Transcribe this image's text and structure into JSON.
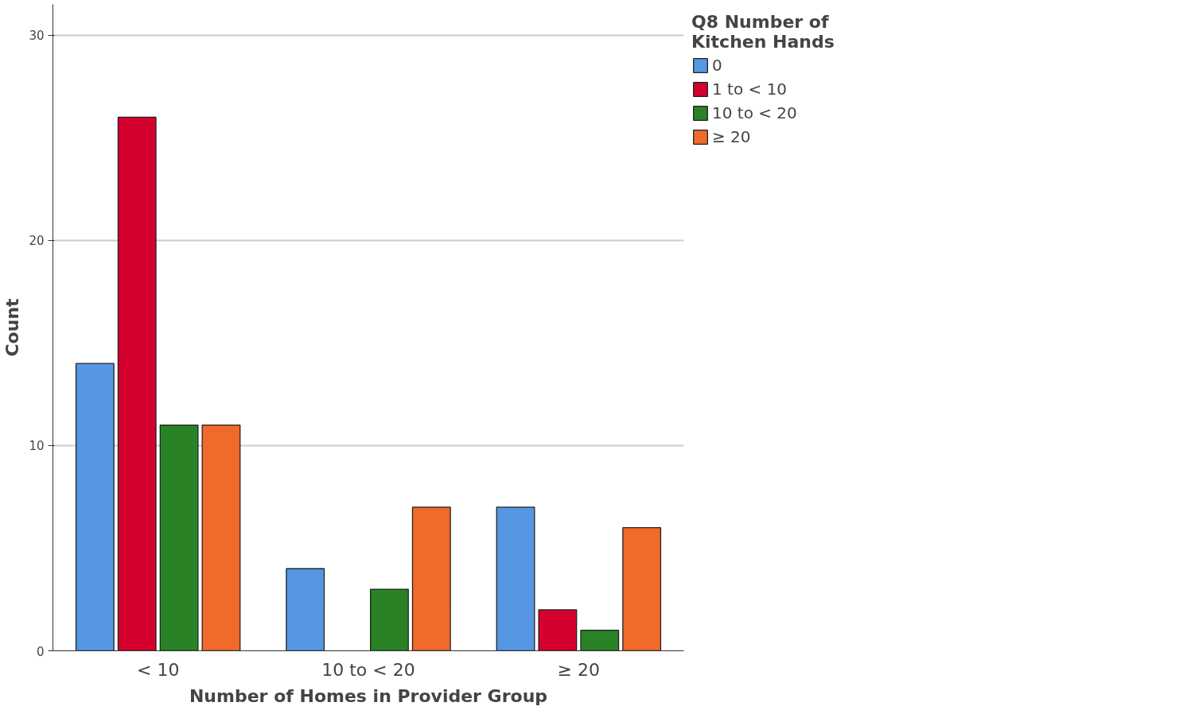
{
  "chart_data": {
    "type": "bar",
    "xlabel": "Number of Homes in Provider Group",
    "ylabel": "Count",
    "legend_title": "Q8 Number of\nKitchen Hands",
    "categories": [
      "< 10",
      "10 to < 20",
      "≥ 20"
    ],
    "series": [
      {
        "name": "0",
        "color": "#5697e3",
        "values": [
          14,
          4,
          7
        ]
      },
      {
        "name": "1 to < 10",
        "color": "#d4002e",
        "values": [
          26,
          null,
          2
        ]
      },
      {
        "name": "10 to < 20",
        "color": "#2a8227",
        "values": [
          11,
          3,
          1
        ]
      },
      {
        "name": "≥ 20",
        "color": "#f06a2a",
        "values": [
          11,
          7,
          6
        ]
      }
    ],
    "ylim": [
      0,
      31.5
    ],
    "yticks": [
      0,
      10,
      20,
      30
    ],
    "grid": "y",
    "legend": "top right"
  }
}
